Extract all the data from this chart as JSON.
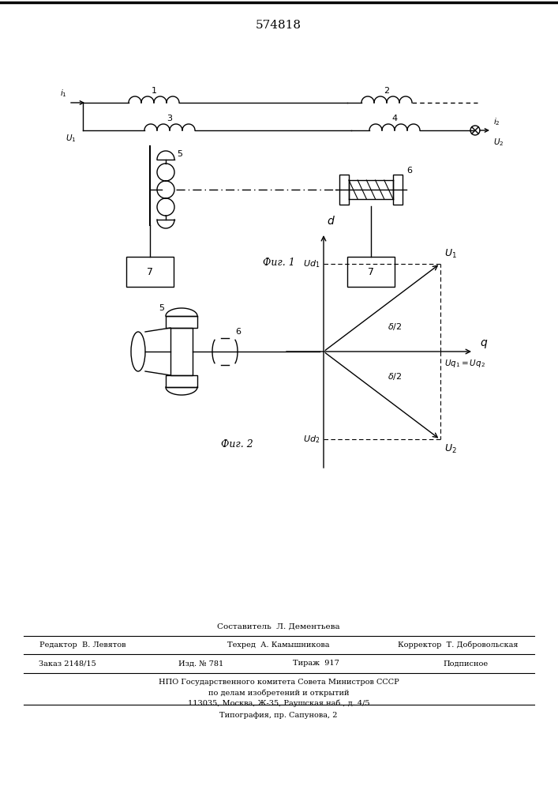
{
  "title": "574818",
  "fig1_label": "Фиг. 1",
  "fig2_label": "Фиг. 2",
  "background": "#ffffff",
  "line_color": "#000000",
  "lw": 1.0,
  "bottom_texts": {
    "compiler": "Составитель  Л. Дементьева",
    "editor": "Редактор  В. Левятов",
    "techred": "Техред  А. Камышникова",
    "corrector": "Корректор  Т. Добровольская",
    "order": "Заказ 2148/15",
    "izd": "Изд. № 781",
    "tirazh": "Тираж  917",
    "podpisnoe": "Подписное",
    "npo": "НПО Государственного комитета Совета Министров СССР",
    "po_delam": "по делам изобретений и открытий",
    "address": "113035, Москва, Ж-35, Раушская наб., д. 4/5",
    "tipografia": "Типография, пр. Сапунова, 2"
  }
}
